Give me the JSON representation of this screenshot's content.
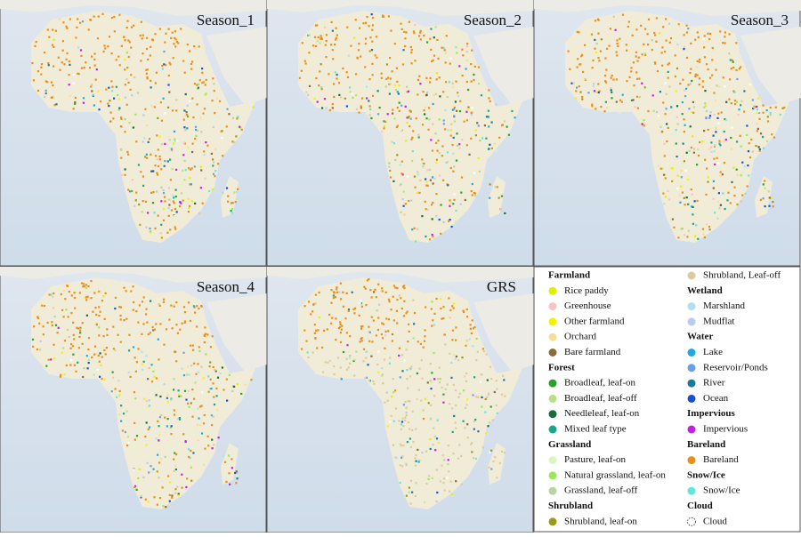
{
  "panels": [
    {
      "title": "Season_1"
    },
    {
      "title": "Season_2"
    },
    {
      "title": "Season_3"
    },
    {
      "title": "Season_4"
    },
    {
      "title": "GRS"
    }
  ],
  "legend": {
    "groups": [
      {
        "title": "Farmland",
        "items": [
          {
            "label": "Rice paddy",
            "color": "#e2f000"
          },
          {
            "label": "Greenhouse",
            "color": "#f7c4c4"
          },
          {
            "label": "Other farmland",
            "color": "#f5f200"
          },
          {
            "label": "Orchard",
            "color": "#f8dc9a"
          },
          {
            "label": "Bare farmland",
            "color": "#8c6a3c"
          }
        ]
      },
      {
        "title": "Forest",
        "items": [
          {
            "label": "Broadleaf, leaf-on",
            "color": "#2ca02c"
          },
          {
            "label": "Broadleaf, leaf-off",
            "color": "#b8e08a"
          },
          {
            "label": "Needleleaf, leaf-on",
            "color": "#1a6b3a"
          },
          {
            "label": "Mixed leaf type",
            "color": "#1aa58a"
          }
        ]
      },
      {
        "title": "Grassland",
        "items": [
          {
            "label": "Pasture, leaf-on",
            "color": "#d8f8c0"
          },
          {
            "label": "Natural grassland, leaf-on",
            "color": "#98e85a"
          },
          {
            "label": "Grassland, leaf-off",
            "color": "#b8d4a0"
          }
        ]
      },
      {
        "title": "Shrubland",
        "items": [
          {
            "label": "Shrubland, leaf-on",
            "color": "#9a9a1a"
          },
          {
            "label": "Shrubland, Leaf-off",
            "color": "#d8cca0"
          }
        ]
      },
      {
        "title": "Wetland",
        "items": [
          {
            "label": "Marshland",
            "color": "#b0e0f0"
          },
          {
            "label": "Mudflat",
            "color": "#b8ccf0"
          }
        ]
      },
      {
        "title": "Water",
        "items": [
          {
            "label": "Lake",
            "color": "#20a8e0"
          },
          {
            "label": "Reservoir/Ponds",
            "color": "#6aa0e8"
          },
          {
            "label": "River",
            "color": "#1a7a9a"
          },
          {
            "label": "Ocean",
            "color": "#1a50d0"
          }
        ]
      },
      {
        "title": "Impervious",
        "items": [
          {
            "label": "Impervious",
            "color": "#c020e0"
          }
        ]
      },
      {
        "title": "Bareland",
        "items": [
          {
            "label": "Bareland",
            "color": "#e8901a"
          }
        ]
      },
      {
        "title": "Snow/Ice",
        "items": [
          {
            "label": "Snow/Ice",
            "color": "#60e8d8"
          }
        ]
      },
      {
        "title": "Cloud",
        "items": [
          {
            "label": "Cloud",
            "color": "#ffffff"
          }
        ]
      }
    ]
  }
}
